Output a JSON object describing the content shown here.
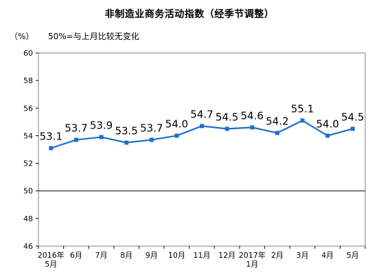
{
  "title": "非制造业商务活动指数（经季节调整）",
  "unit_label": "（%）",
  "note": "50%=与上月比较无变化",
  "colors": {
    "series": "#1f6fc5",
    "grid": "#bfbfbf",
    "axis": "#000000",
    "frame": "#7f7f7f"
  },
  "chart_data": {
    "type": "line",
    "title": "非制造业商务活动指数（经季节调整）",
    "ylabel": "（%）",
    "ylim": [
      46,
      60
    ],
    "yticks": [
      46,
      48,
      50,
      52,
      54,
      56,
      58,
      60
    ],
    "reference_line": 50,
    "grid": false,
    "categories": [
      [
        "2016年",
        "5月"
      ],
      [
        "6月"
      ],
      [
        "7月"
      ],
      [
        "8月"
      ],
      [
        "9月"
      ],
      [
        "10月"
      ],
      [
        "11月"
      ],
      [
        "12月"
      ],
      [
        "2017年",
        "1月"
      ],
      [
        "2月"
      ],
      [
        "3月"
      ],
      [
        "4月"
      ],
      [
        "5月"
      ]
    ],
    "series": [
      {
        "values": [
          53.1,
          53.7,
          53.9,
          53.5,
          53.7,
          54.0,
          54.7,
          54.5,
          54.6,
          54.2,
          55.1,
          54.0,
          54.5
        ],
        "labels": [
          "53.1",
          "53.7",
          "53.9",
          "53.5",
          "53.7",
          "54.0",
          "54.7",
          "54.5",
          "54.6",
          "54.2",
          "55.1",
          "54.0",
          "54.5"
        ]
      }
    ]
  }
}
